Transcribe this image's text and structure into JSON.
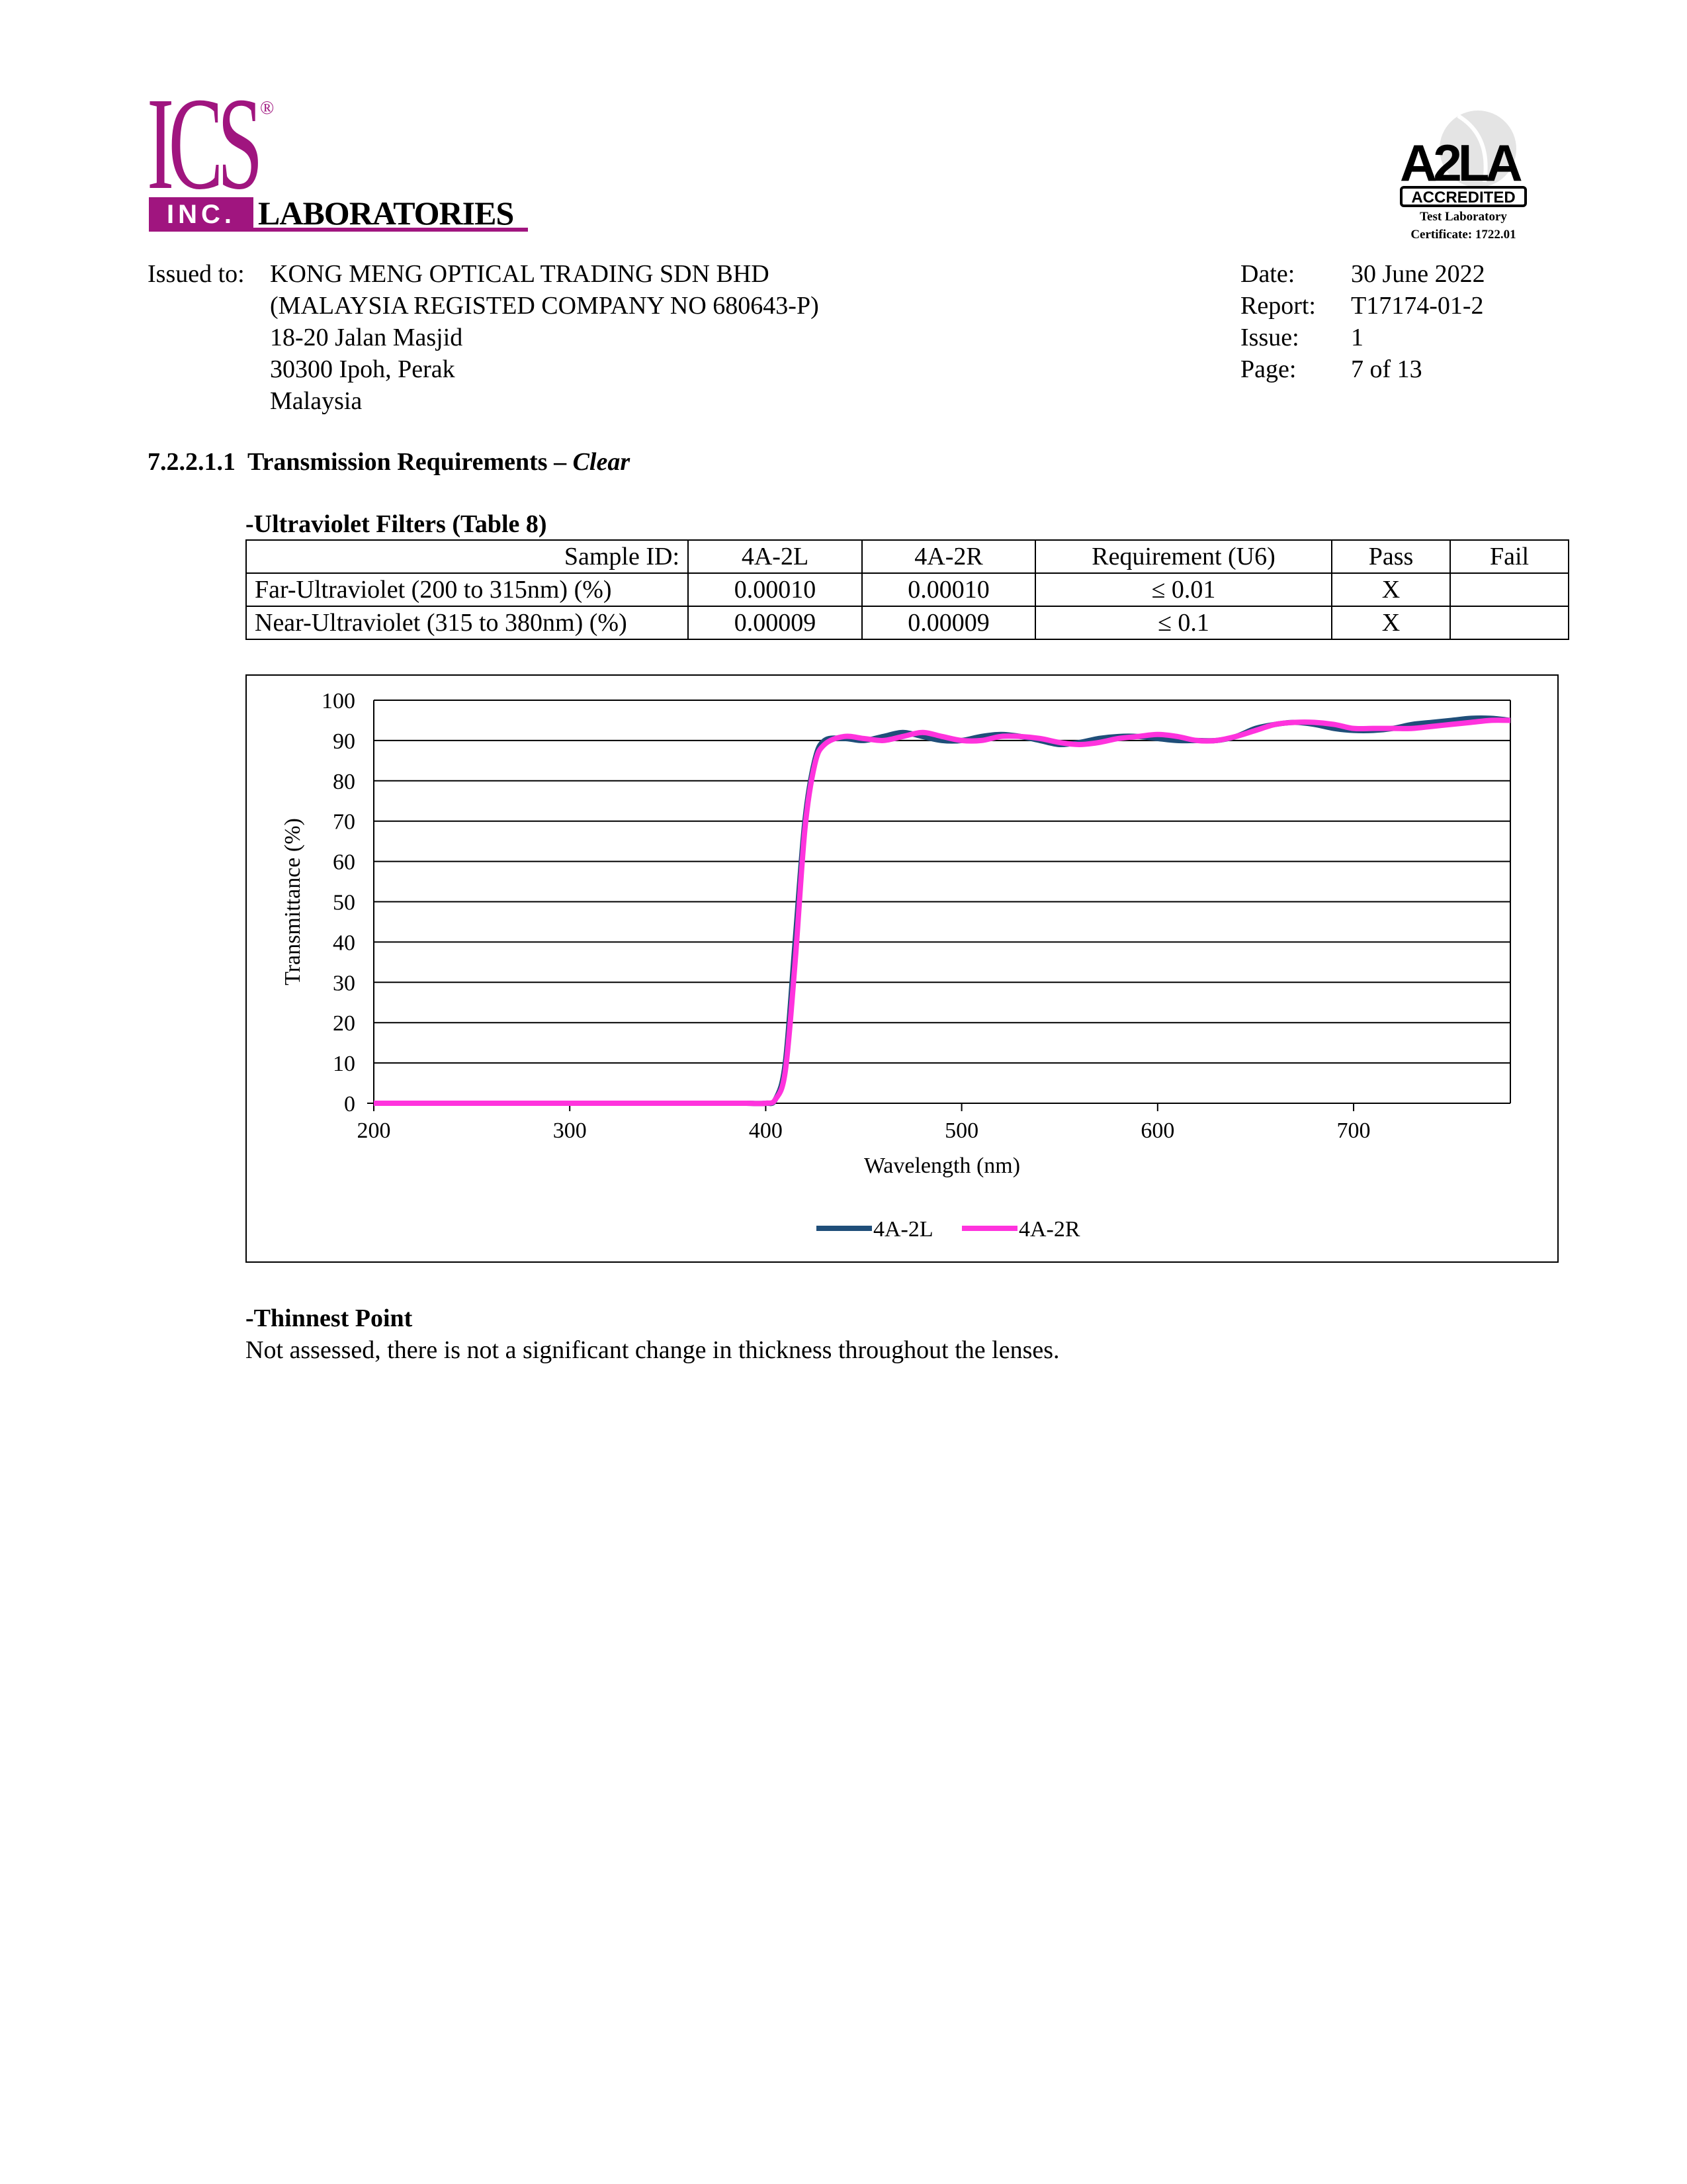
{
  "header": {
    "logo": {
      "letters": "ICS",
      "registered": "®",
      "inc": "INC.",
      "name": "LABORATORIES",
      "brand_color": "#a0157f"
    },
    "accreditation": {
      "mark": "A2LA",
      "badge": "ACCREDITED",
      "line1": "Test Laboratory",
      "line2": "Certificate: 1722.01"
    }
  },
  "issued": {
    "label": "Issued to:",
    "lines": [
      "KONG MENG OPTICAL TRADING SDN BHD",
      "(MALAYSIA REGISTED COMPANY NO 680643-P)",
      "18-20 Jalan Masjid",
      "30300 Ipoh, Perak",
      "Malaysia"
    ]
  },
  "meta": [
    {
      "label": "Date:",
      "value": "30 June 2022"
    },
    {
      "label": "Report:",
      "value": "T17174-01-2"
    },
    {
      "label": "Issue:",
      "value": "1"
    },
    {
      "label": "Page:",
      "value": "7 of 13"
    }
  ],
  "section": {
    "number": "7.2.2.1.1",
    "title": "Transmission Requirements – ",
    "title_italic": "Clear"
  },
  "uv_table": {
    "caption": "-Ultraviolet Filters (Table 8)",
    "headers": [
      "Sample ID:",
      "4A-2L",
      "4A-2R",
      "Requirement (U6)",
      "Pass",
      "Fail"
    ],
    "rows": [
      [
        "Far-Ultraviolet (200 to 315nm) (%)",
        "0.00010",
        "0.00010",
        "≤ 0.01",
        "X",
        ""
      ],
      [
        "Near-Ultraviolet (315 to 380nm) (%)",
        "0.00009",
        "0.00009",
        "≤ 0.1",
        "X",
        ""
      ]
    ]
  },
  "chart_data": {
    "type": "line",
    "xlabel": "Wavelength (nm)",
    "ylabel": "Transmittance (%)",
    "xlim": [
      200,
      780
    ],
    "ylim": [
      0,
      100
    ],
    "xticks": [
      200,
      300,
      400,
      500,
      600,
      700
    ],
    "yticks": [
      0,
      10,
      20,
      30,
      40,
      50,
      60,
      70,
      80,
      90,
      100
    ],
    "grid": "horizontal",
    "legend": "bottom",
    "x": [
      200,
      210,
      220,
      230,
      240,
      250,
      260,
      270,
      280,
      290,
      300,
      310,
      320,
      330,
      340,
      350,
      360,
      370,
      380,
      390,
      400,
      405,
      410,
      415,
      420,
      425,
      430,
      440,
      450,
      460,
      470,
      480,
      490,
      500,
      510,
      520,
      530,
      540,
      550,
      560,
      570,
      580,
      590,
      600,
      610,
      620,
      630,
      640,
      650,
      660,
      670,
      680,
      690,
      700,
      710,
      720,
      730,
      740,
      750,
      760,
      770,
      780
    ],
    "series": [
      {
        "name": "4A-2L",
        "color": "#1f4e79",
        "values": [
          0,
          0,
          0,
          0,
          0,
          0,
          0,
          0,
          0,
          0,
          0,
          0,
          0,
          0,
          0,
          0,
          0,
          0,
          0,
          0,
          0,
          1,
          10,
          40,
          70,
          85,
          90,
          90.5,
          90,
          91,
          92,
          91,
          90,
          90,
          91,
          91.5,
          91,
          90,
          89,
          89.5,
          90.5,
          91,
          91,
          90.5,
          90,
          90,
          90,
          91,
          93,
          94,
          94.5,
          94,
          93,
          92.5,
          92.5,
          93,
          94,
          94.5,
          95,
          95.5,
          95.5,
          95
        ]
      },
      {
        "name": "4A-2R",
        "color": "#ff33dd",
        "values": [
          0,
          0,
          0,
          0,
          0,
          0,
          0,
          0,
          0,
          0,
          0,
          0,
          0,
          0,
          0,
          0,
          0,
          0,
          0,
          0,
          0,
          1,
          8,
          35,
          68,
          84,
          89,
          91,
          90.5,
          90,
          91,
          92,
          91,
          90,
          90,
          91,
          91,
          90.5,
          89.5,
          89,
          89.5,
          90.5,
          91,
          91.5,
          91,
          90,
          90,
          91,
          92.5,
          94,
          94.5,
          94.5,
          94,
          93,
          93,
          93,
          93,
          93.5,
          94,
          94.5,
          95,
          95
        ]
      }
    ]
  },
  "thinnest": {
    "heading": "-Thinnest Point",
    "text": "Not assessed, there is not a significant change in thickness throughout the lenses."
  }
}
